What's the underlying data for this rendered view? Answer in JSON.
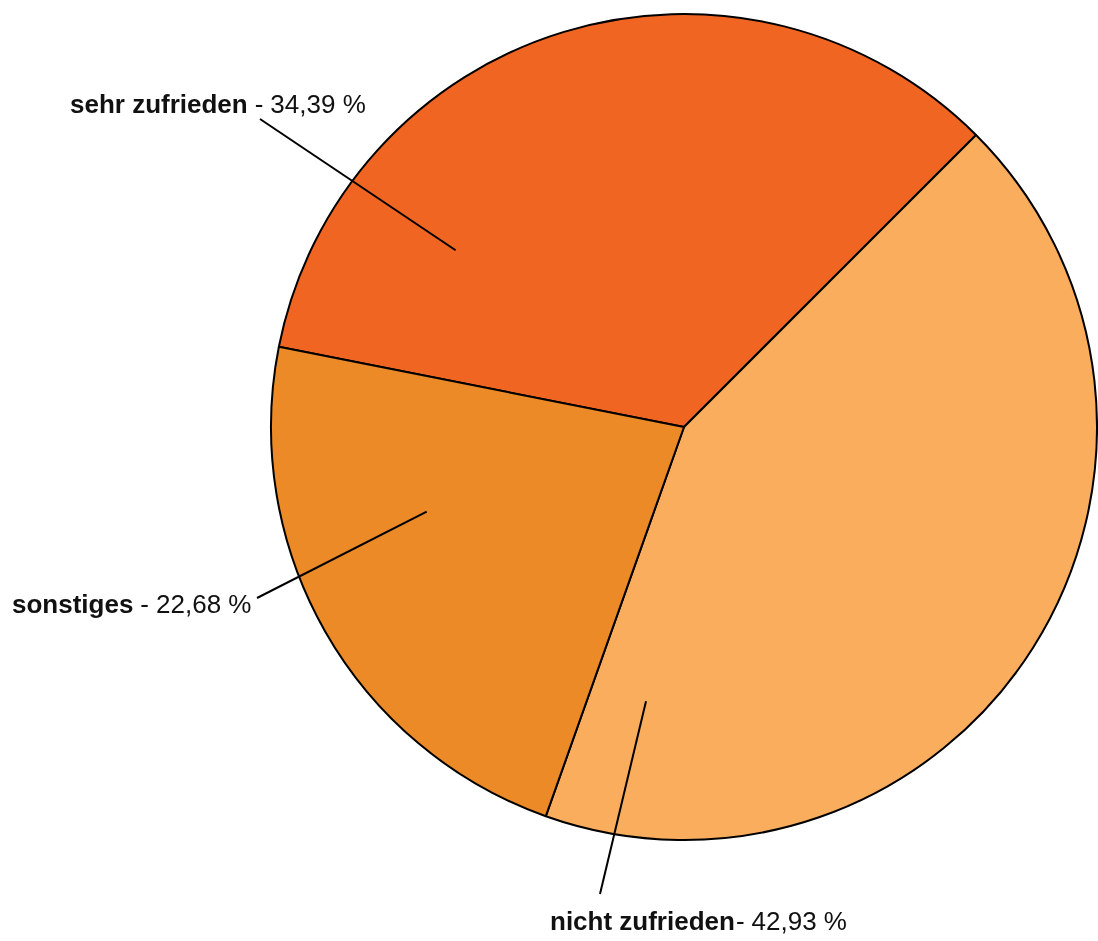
{
  "chart_data": {
    "type": "pie",
    "categories": [
      "sehr zufrieden",
      "nicht zufrieden",
      "sonstiges"
    ],
    "values": [
      34.39,
      42.93,
      22.68
    ],
    "colors": [
      "#f06522",
      "#f9ad5d",
      "#ec8a27"
    ],
    "value_labels": [
      "34,39 %",
      "42,93 %",
      "22,68 %"
    ],
    "annotations": [
      "-",
      "-",
      "-"
    ],
    "legend": false
  }
}
